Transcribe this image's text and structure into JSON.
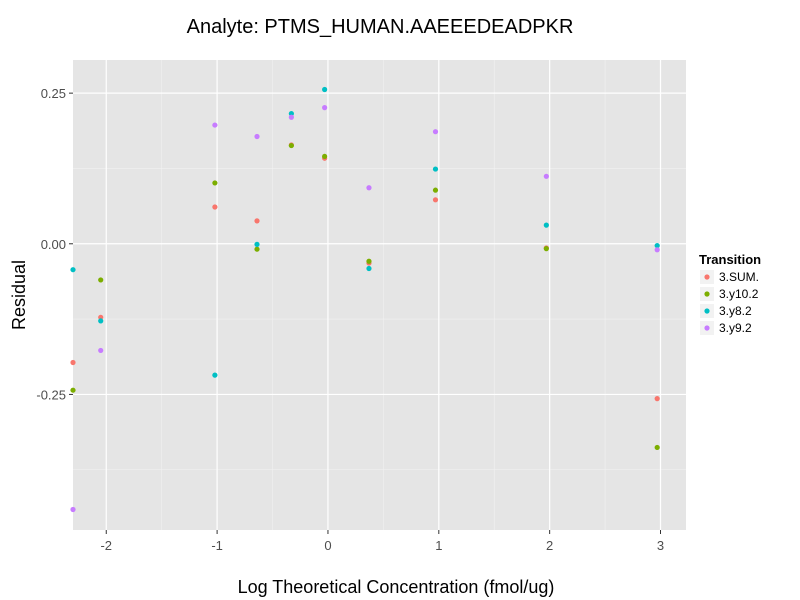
{
  "chart_data": {
    "type": "scatter",
    "title": "Analyte: PTMS_HUMAN.AAEEEDEADPKR",
    "xlabel": "Log Theoretical Concentration (fmol/ug)",
    "ylabel": "Residual",
    "xlim": [
      -2.3,
      3.23
    ],
    "ylim": [
      -0.475,
      0.305
    ],
    "x_ticks": [
      -2,
      -1,
      0,
      1,
      2,
      3
    ],
    "x_tick_labels": [
      "-2",
      "-1",
      "0",
      "1",
      "2",
      "3"
    ],
    "y_ticks": [
      0.25,
      0.0,
      -0.25
    ],
    "y_tick_labels": [
      "0.25",
      "0.00",
      "-0.25"
    ],
    "grid": true,
    "legend": {
      "title": "Transition",
      "position": "right"
    },
    "colors": {
      "panel": "#e5e5e5",
      "grid_major": "#ffffff",
      "grid_minor": "#f2f2f2"
    },
    "series": [
      {
        "name": "3.SUM.",
        "color": "#f8766d",
        "points": [
          [
            -2.3,
            -0.197
          ],
          [
            -2.05,
            -0.122
          ],
          [
            -1.02,
            0.061
          ],
          [
            -0.64,
            0.038
          ],
          [
            -0.33,
            0.164
          ],
          [
            -0.03,
            0.142
          ],
          [
            0.37,
            -0.032
          ],
          [
            0.97,
            0.073
          ],
          [
            1.97,
            -0.007
          ],
          [
            2.97,
            -0.257
          ]
        ]
      },
      {
        "name": "3.y10.2",
        "color": "#7cae00",
        "points": [
          [
            -2.3,
            -0.243
          ],
          [
            -2.05,
            -0.06
          ],
          [
            -1.02,
            0.101
          ],
          [
            -0.64,
            -0.009
          ],
          [
            -0.33,
            0.163
          ],
          [
            -0.03,
            0.145
          ],
          [
            0.37,
            -0.029
          ],
          [
            0.97,
            0.089
          ],
          [
            1.97,
            -0.008
          ],
          [
            2.97,
            -0.338
          ]
        ]
      },
      {
        "name": "3.y8.2",
        "color": "#00bfc4",
        "points": [
          [
            -2.3,
            -0.043
          ],
          [
            -2.05,
            -0.128
          ],
          [
            -1.02,
            -0.218
          ],
          [
            -0.64,
            -0.001
          ],
          [
            -0.33,
            0.216
          ],
          [
            -0.03,
            0.256
          ],
          [
            0.37,
            -0.041
          ],
          [
            0.97,
            0.124
          ],
          [
            1.97,
            0.031
          ],
          [
            2.97,
            -0.003
          ]
        ]
      },
      {
        "name": "3.y9.2",
        "color": "#c77cff",
        "points": [
          [
            -2.3,
            -0.441
          ],
          [
            -2.05,
            -0.177
          ],
          [
            -1.02,
            0.197
          ],
          [
            -0.64,
            0.178
          ],
          [
            -0.33,
            0.21
          ],
          [
            -0.03,
            0.226
          ],
          [
            0.37,
            0.093
          ],
          [
            0.97,
            0.186
          ],
          [
            1.97,
            0.112
          ],
          [
            2.97,
            -0.01
          ]
        ]
      }
    ]
  }
}
